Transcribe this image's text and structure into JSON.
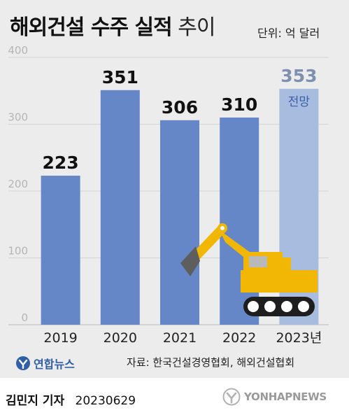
{
  "header": {
    "title_main": "해외건설 수주 실적",
    "title_sub": "추이",
    "unit": "단위: 억 달러"
  },
  "chart_data": {
    "type": "bar",
    "categories": [
      "2019",
      "2020",
      "2021",
      "2022",
      "2023년"
    ],
    "values": [
      223,
      351,
      306,
      310,
      353
    ],
    "value_labels": [
      "223",
      "351",
      "306",
      "310",
      "353"
    ],
    "forecast_index": 4,
    "forecast_note": "전망",
    "y_ticks": [
      "0",
      "100",
      "200",
      "300",
      "400"
    ],
    "ylim": [
      0,
      400
    ],
    "grid": true,
    "colors": {
      "bar": "#6587c8",
      "forecast_bar": "#a7bcdf",
      "value_label": "#111111",
      "forecast_label": "#7f8fb0",
      "forecast_note": "#3a5fa8",
      "grid": "#d4d4d4",
      "excavator": "#f2b705"
    }
  },
  "footer": {
    "logo": "연합뉴스",
    "source": "자료: 한국건설경영협회, 해외건설협회",
    "reporter": "김민지 기자",
    "date": "20230629",
    "watermark": "YONHAPNEWS"
  }
}
